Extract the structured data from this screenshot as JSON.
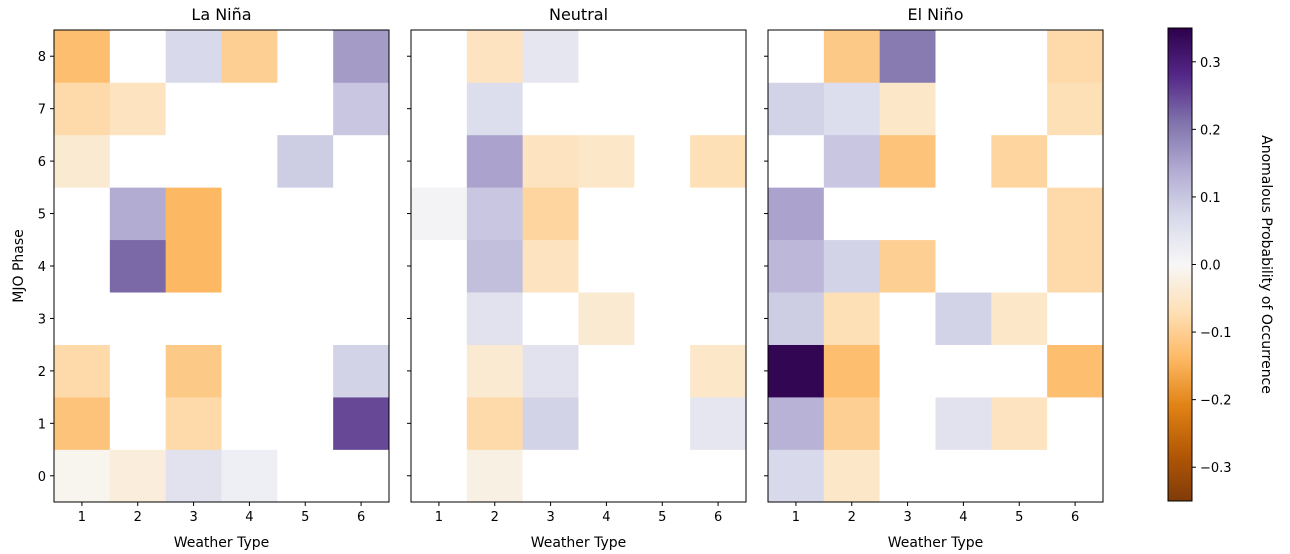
{
  "chart_data": {
    "type": "heatmap",
    "xlabel": "Weather Type",
    "ylabel": "MJO Phase",
    "x_categories": [
      "1",
      "2",
      "3",
      "4",
      "5",
      "6"
    ],
    "y_categories": [
      "0",
      "1",
      "2",
      "3",
      "4",
      "5",
      "6",
      "7",
      "8"
    ],
    "colorbar": {
      "label": "Anomalous Probability of Occurrence",
      "range": [
        -0.35,
        0.35
      ],
      "ticks": [
        "0.3",
        "0.2",
        "0.1",
        "0.0",
        "−0.1",
        "−0.2",
        "−0.3"
      ],
      "tick_values": [
        0.3,
        0.2,
        0.1,
        0.0,
        -0.1,
        -0.2,
        -0.3
      ],
      "colormap": "PuOr"
    },
    "panels": [
      {
        "title": "La Niña",
        "values": [
          [
            -0.01,
            -0.03,
            0.05,
            0.02,
            0,
            0
          ],
          [
            -0.12,
            0,
            -0.08,
            0,
            0,
            0.25
          ],
          [
            -0.08,
            0,
            -0.11,
            0,
            0,
            0.08
          ],
          [
            0,
            0,
            0,
            0,
            0,
            0
          ],
          [
            0,
            0.22,
            -0.14,
            0,
            0,
            0
          ],
          [
            0,
            0.14,
            -0.14,
            0,
            0,
            0
          ],
          [
            -0.04,
            0,
            0,
            0,
            0.09,
            0
          ],
          [
            -0.08,
            -0.06,
            0,
            0,
            0,
            0.1
          ],
          [
            -0.13,
            0,
            0.07,
            -0.1,
            0,
            0.16
          ]
        ]
      },
      {
        "title": "Neutral",
        "values": [
          [
            0,
            -0.02,
            0,
            0,
            0,
            0.005
          ],
          [
            0,
            -0.08,
            0.08,
            0,
            0,
            0.04
          ],
          [
            0,
            -0.04,
            0.05,
            0,
            0,
            -0.05
          ],
          [
            0,
            0.05,
            0,
            -0.04,
            0,
            0
          ],
          [
            0,
            0.11,
            -0.06,
            0,
            0,
            0
          ],
          [
            0.01,
            0.1,
            -0.09,
            0,
            0,
            0
          ],
          [
            0,
            0.15,
            -0.06,
            -0.05,
            0,
            -0.07
          ],
          [
            0,
            0.06,
            0,
            0,
            0,
            0
          ],
          [
            0,
            -0.06,
            0.04,
            0,
            0,
            0
          ]
        ]
      },
      {
        "title": "El Niño",
        "values": [
          [
            0.07,
            -0.05,
            0,
            0,
            0,
            0
          ],
          [
            0.13,
            -0.1,
            0,
            0.05,
            -0.06,
            0
          ],
          [
            0.34,
            -0.13,
            0,
            0,
            0,
            -0.13
          ],
          [
            0.09,
            -0.07,
            0,
            0.08,
            -0.05,
            0
          ],
          [
            0.12,
            0.08,
            -0.1,
            0,
            0,
            -0.08
          ],
          [
            0.15,
            0,
            0,
            0,
            0,
            -0.08
          ],
          [
            0,
            0.1,
            -0.12,
            0,
            -0.09,
            0
          ],
          [
            0.08,
            0.06,
            -0.05,
            0,
            0,
            -0.07
          ],
          [
            0,
            -0.11,
            0.2,
            0,
            0,
            -0.08
          ]
        ]
      }
    ]
  }
}
